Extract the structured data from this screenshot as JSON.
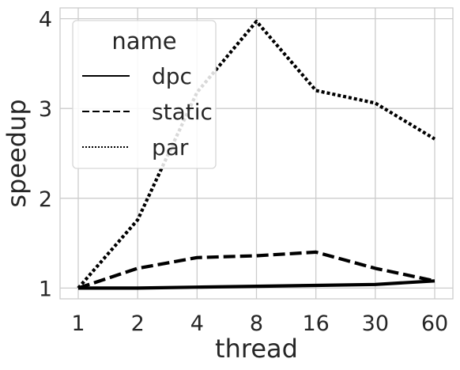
{
  "chart_data": {
    "type": "line",
    "xlabel": "thread",
    "ylabel": "speedup",
    "categories": [
      "1",
      "2",
      "4",
      "8",
      "16",
      "30",
      "60"
    ],
    "yticks": [
      1,
      2,
      3,
      4
    ],
    "ylim": [
      0.88,
      4.12
    ],
    "grid": true,
    "legend": {
      "title": "name",
      "placement": "top-left"
    },
    "series": [
      {
        "name": "dpc",
        "style": "solid",
        "values": [
          1.0,
          1.0,
          1.01,
          1.02,
          1.03,
          1.04,
          1.08
        ]
      },
      {
        "name": "static",
        "style": "dashed",
        "values": [
          1.0,
          1.22,
          1.34,
          1.36,
          1.4,
          1.22,
          1.08
        ]
      },
      {
        "name": "par",
        "style": "dotted",
        "values": [
          1.0,
          1.76,
          3.18,
          3.97,
          3.2,
          3.06,
          2.66
        ]
      }
    ],
    "colors": {
      "line": "#000000",
      "grid": "#cccccc",
      "text": "#262626",
      "spine": "#cccccc"
    }
  }
}
